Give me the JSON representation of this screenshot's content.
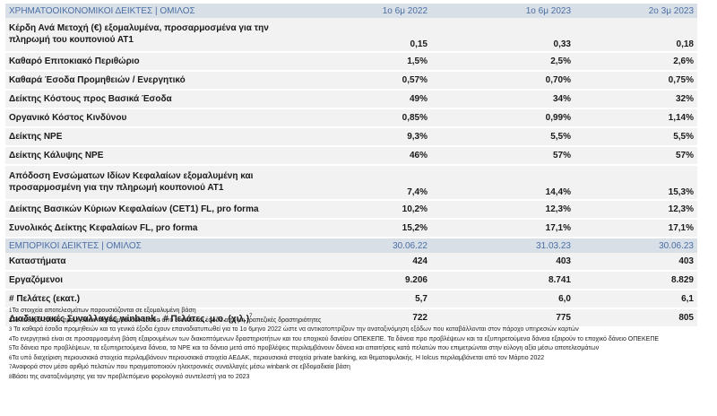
{
  "financial": {
    "header": [
      "ΧΡΗΜΑΤΟΟΙΚΟΝΟΜΙΚΟΙ ΔΕΙΚΤΕΣ | ΟΜΙΛΟΣ",
      "1ο 6μ 2022",
      "1ο 6μ 2023",
      "2ο 3μ 2023"
    ],
    "rows": [
      {
        "label": "Κέρδη Ανά Μετοχή (€) εξομαλυμένα, προσαρμοσμένα για την πληρωμή του κουπονιού ΑΤ1",
        "v": [
          "0,15",
          "0,33",
          "0,18"
        ]
      },
      {
        "label": "Καθαρό Επιτοκιακό Περιθώριο",
        "v": [
          "1,5%",
          "2,5%",
          "2,6%"
        ]
      },
      {
        "label": "Καθαρά Έσοδα Προμηθειών / Ενεργητικό",
        "v": [
          "0,57%",
          "0,70%",
          "0,75%"
        ]
      },
      {
        "label": "Δείκτης Κόστους προς Βασικά Έσοδα",
        "v": [
          "49%",
          "34%",
          "32%"
        ]
      },
      {
        "label": "Οργανικό Κόστος Κινδύνου",
        "v": [
          "0,85%",
          "0,99%",
          "1,14%"
        ]
      },
      {
        "label": "Δείκτης NPE",
        "v": [
          "9,3%",
          "5,5%",
          "5,5%"
        ]
      },
      {
        "label": "Δείκτης Κάλυψης NPE",
        "v": [
          "46%",
          "57%",
          "57%"
        ]
      },
      {
        "label": "Απόδοση Ενσώματων Ιδίων Κεφαλαίων εξομαλυμένη και προσαρμοσμένη για την πληρωμή κουπονιού ΑΤ1",
        "v": [
          "7,4%",
          "14,4%",
          "15,3%"
        ]
      },
      {
        "label": "Δείκτης Βασικών Κύριων Κεφαλαίων (CET1) FL, pro forma",
        "v": [
          "10,2%",
          "12,3%",
          "12,3%"
        ]
      },
      {
        "label": "Συνολικός Δείκτης Κεφαλαίων FL, pro forma",
        "v": [
          "15,2%",
          "17,1%",
          "17,1%"
        ]
      }
    ]
  },
  "business": {
    "header": [
      "ΕΜΠΟΡΙΚΟΙ ΔΕΙΚΤΕΣ | ΟΜΙΛΟΣ",
      "30.06.22",
      "31.03.23",
      "30.06.23"
    ],
    "rows": [
      {
        "label": "Καταστήματα",
        "v": [
          "424",
          "403",
          "403"
        ]
      },
      {
        "label": "Εργαζόμενοι",
        "v": [
          "9.206",
          "8.741",
          "8.829"
        ]
      },
      {
        "label": "# Πελάτες (εκατ.)",
        "v": [
          "5,7",
          "6,0",
          "6,1"
        ]
      },
      {
        "label": "Διαδικτυακές Συναλλαγές winbank . # Πελάτες. μ.ο. (χιλ.)",
        "sup": "7",
        "v": [
          "722",
          "775",
          "805"
        ]
      }
    ]
  },
  "notes": [
    {
      "n": "1",
      "text": "Τα στοιχεία αποτελεσμάτων παρουσιάζονται σε εξομαλυμένη βάση"
    },
    {
      "n": "2",
      "text": "Τα καθαρά έσοδα προμηθειών περιλαμβάνουν έσοδα από ενοίκια και έσοδα από μη τραπεζικές δραστηριότητες"
    },
    {
      "n": "3",
      "text": " Τα καθαρά έσοδα προμηθειών και τα γενικά έξοδα έχουν επαναδιατυπωθεί για το 1ο 6μηνο 2022 ώστε να αντικατοπτρίζουν την αναταξινόμηση εξόδων που καταβάλλονται στον πάροχο υπηρεσιών καρτών"
    },
    {
      "n": "4",
      "text": "Το ενεργητικό είναι σε προσαρμοσμένη βάση εξαιρουμένων των διακοπτόμενων δραστηριοτήτων και του εποχικού δανείου ΟΠΕΚΕΠΕ. Τα δάνεια προ προβλέψεων και τα εξυπηρετούμενα δάνεια εξαιρούν το εποχικό δάνειο ΟΠΕΚΕΠΕ"
    },
    {
      "n": "5",
      "text": "Τα δάνεια προ προβλέψεων, τα εξυπηρετούμενα δάνεια, τα NPE και τα δάνεια μετά από προβλέψεις περιλαμβάνουν δάνεια και απαιτήσεις κατά πελατών που επιμετρώνται στην εύλογη αξία μέσω αποτελεσμάτων"
    },
    {
      "n": "6",
      "text": "Τα υπό διαχείριση περιουσιακά στοιχεία περιλαμβάνουν περιουσιακά στοιχεία ΑΕΔΑΚ, περιουσιακά στοιχεία private banking, και θεματοφυλακής. Η Iolcus περιλαμβάνεται από τον Μάρτιο 2022"
    },
    {
      "n": "7",
      "text": "Αναφορά στον μέσο αριθμό πελατών που πραγματοποιούν ηλεκτρονικές συναλλαγές μέσω winbank σε εβδομαδιαία βάση"
    },
    {
      "n": "8",
      "text": "Βάσει της αναταξινόμησης για τον προβλεπόμενο φορολογικό συντελεστή για το 2023"
    }
  ]
}
